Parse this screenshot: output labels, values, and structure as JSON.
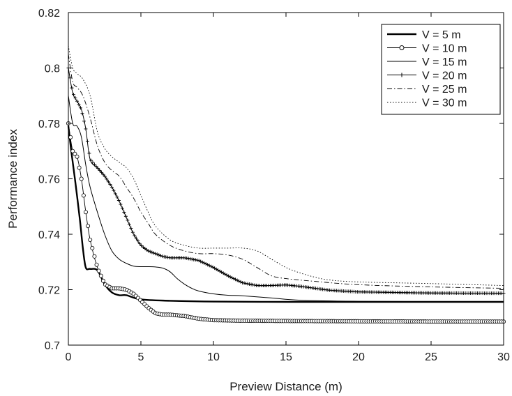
{
  "chart_data": {
    "type": "line",
    "xlabel": "Preview Distance (m)",
    "ylabel": "Performance index",
    "xlim": [
      0,
      30
    ],
    "ylim": [
      0.7,
      0.82
    ],
    "xticks": [
      0,
      5,
      10,
      15,
      20,
      25,
      30
    ],
    "yticks": [
      0.7,
      0.72,
      0.74,
      0.76,
      0.78,
      0.8,
      0.82
    ],
    "xtick_labels": [
      "0",
      "5",
      "10",
      "15",
      "20",
      "25",
      "30"
    ],
    "ytick_labels": [
      "0.7",
      "0.72",
      "0.74",
      "0.76",
      "0.78",
      "0.8",
      "0.82"
    ],
    "grid": false,
    "legend_position": "top-right",
    "series": [
      {
        "name": "V = 5 m",
        "style": "thick-solid",
        "color": "#000000",
        "x": [
          0,
          0.2,
          0.5,
          0.8,
          1.0,
          1.2,
          1.5,
          2.0,
          2.5,
          3.0,
          3.5,
          4.0,
          5.0,
          7.0,
          10.0,
          15.0,
          20.0,
          25.0,
          30.0
        ],
        "y": [
          0.779,
          0.77,
          0.758,
          0.745,
          0.735,
          0.728,
          0.7275,
          0.727,
          0.722,
          0.719,
          0.718,
          0.718,
          0.7165,
          0.716,
          0.7157,
          0.7156,
          0.7156,
          0.7156,
          0.7156
        ]
      },
      {
        "name": "V = 10 m",
        "style": "circle-markers",
        "color": "#000000",
        "x": [
          0,
          0.3,
          0.6,
          0.9,
          1.2,
          1.5,
          2.0,
          2.5,
          3.0,
          3.5,
          4.0,
          4.5,
          5.0,
          5.5,
          6.0,
          6.5,
          7.0,
          8.0,
          9.0,
          10.0,
          12.0,
          15.0,
          20.0,
          25.0,
          30.0
        ],
        "y": [
          0.78,
          0.77,
          0.768,
          0.76,
          0.748,
          0.738,
          0.728,
          0.722,
          0.7205,
          0.7205,
          0.72,
          0.7185,
          0.716,
          0.7135,
          0.7115,
          0.711,
          0.711,
          0.7105,
          0.7095,
          0.709,
          0.7088,
          0.7087,
          0.7086,
          0.7085,
          0.7085
        ]
      },
      {
        "name": "V = 15 m",
        "style": "thin-solid",
        "color": "#000000",
        "x": [
          0,
          0.3,
          0.6,
          0.9,
          1.2,
          1.5,
          2.0,
          2.5,
          3.0,
          3.5,
          4.0,
          4.5,
          5.0,
          5.5,
          6.0,
          6.5,
          7.0,
          7.5,
          8.0,
          8.5,
          9.0,
          10.0,
          11.0,
          12.0,
          14.0,
          16.0,
          20.0,
          25.0,
          30.0
        ],
        "y": [
          0.79,
          0.78,
          0.779,
          0.775,
          0.765,
          0.757,
          0.748,
          0.74,
          0.734,
          0.731,
          0.7295,
          0.7285,
          0.7283,
          0.7283,
          0.7282,
          0.7278,
          0.7265,
          0.724,
          0.722,
          0.7205,
          0.7195,
          0.7185,
          0.718,
          0.7178,
          0.717,
          0.7162,
          0.7158,
          0.7157,
          0.7156
        ]
      },
      {
        "name": "V = 20 m",
        "style": "plus-markers",
        "color": "#000000",
        "x": [
          0,
          0.3,
          0.6,
          0.9,
          1.2,
          1.5,
          2.0,
          2.5,
          3.0,
          3.5,
          4.0,
          4.5,
          5.0,
          5.5,
          6.0,
          6.5,
          7.0,
          8.0,
          9.0,
          10.0,
          11.0,
          12.0,
          13.0,
          14.0,
          15.0,
          16.0,
          17.0,
          18.0,
          20.0,
          25.0,
          30.0
        ],
        "y": [
          0.8,
          0.791,
          0.788,
          0.785,
          0.778,
          0.767,
          0.764,
          0.761,
          0.757,
          0.752,
          0.746,
          0.74,
          0.736,
          0.734,
          0.733,
          0.732,
          0.7315,
          0.7315,
          0.7305,
          0.728,
          0.725,
          0.7225,
          0.7215,
          0.7215,
          0.7217,
          0.7212,
          0.7205,
          0.7198,
          0.7192,
          0.7188,
          0.7187
        ]
      },
      {
        "name": "V = 25 m",
        "style": "dash-dot",
        "color": "#000000",
        "x": [
          0,
          0.3,
          0.6,
          1.0,
          1.5,
          2.0,
          2.5,
          3.0,
          3.5,
          4.0,
          4.5,
          5.0,
          5.5,
          6.0,
          7.0,
          8.0,
          9.0,
          10.0,
          11.0,
          12.0,
          13.0,
          14.0,
          15.0,
          17.0,
          20.0,
          25.0,
          30.0
        ],
        "y": [
          0.805,
          0.795,
          0.793,
          0.79,
          0.782,
          0.772,
          0.766,
          0.763,
          0.761,
          0.757,
          0.753,
          0.748,
          0.744,
          0.74,
          0.736,
          0.734,
          0.733,
          0.733,
          0.7325,
          0.731,
          0.728,
          0.725,
          0.724,
          0.723,
          0.7218,
          0.721,
          0.7205
        ]
      },
      {
        "name": "V = 30 m",
        "style": "dotted",
        "color": "#000000",
        "x": [
          0,
          0.3,
          0.6,
          1.0,
          1.5,
          2.0,
          2.5,
          3.0,
          3.5,
          4.0,
          4.5,
          5.0,
          5.5,
          6.0,
          7.0,
          8.0,
          9.0,
          10.0,
          11.0,
          12.0,
          13.0,
          14.0,
          15.0,
          16.0,
          17.0,
          18.0,
          20.0,
          25.0,
          30.0
        ],
        "y": [
          0.808,
          0.8,
          0.798,
          0.796,
          0.79,
          0.777,
          0.771,
          0.768,
          0.766,
          0.764,
          0.76,
          0.754,
          0.748,
          0.743,
          0.738,
          0.736,
          0.735,
          0.735,
          0.735,
          0.735,
          0.734,
          0.731,
          0.728,
          0.726,
          0.7245,
          0.7235,
          0.7228,
          0.7222,
          0.7215
        ]
      }
    ]
  }
}
